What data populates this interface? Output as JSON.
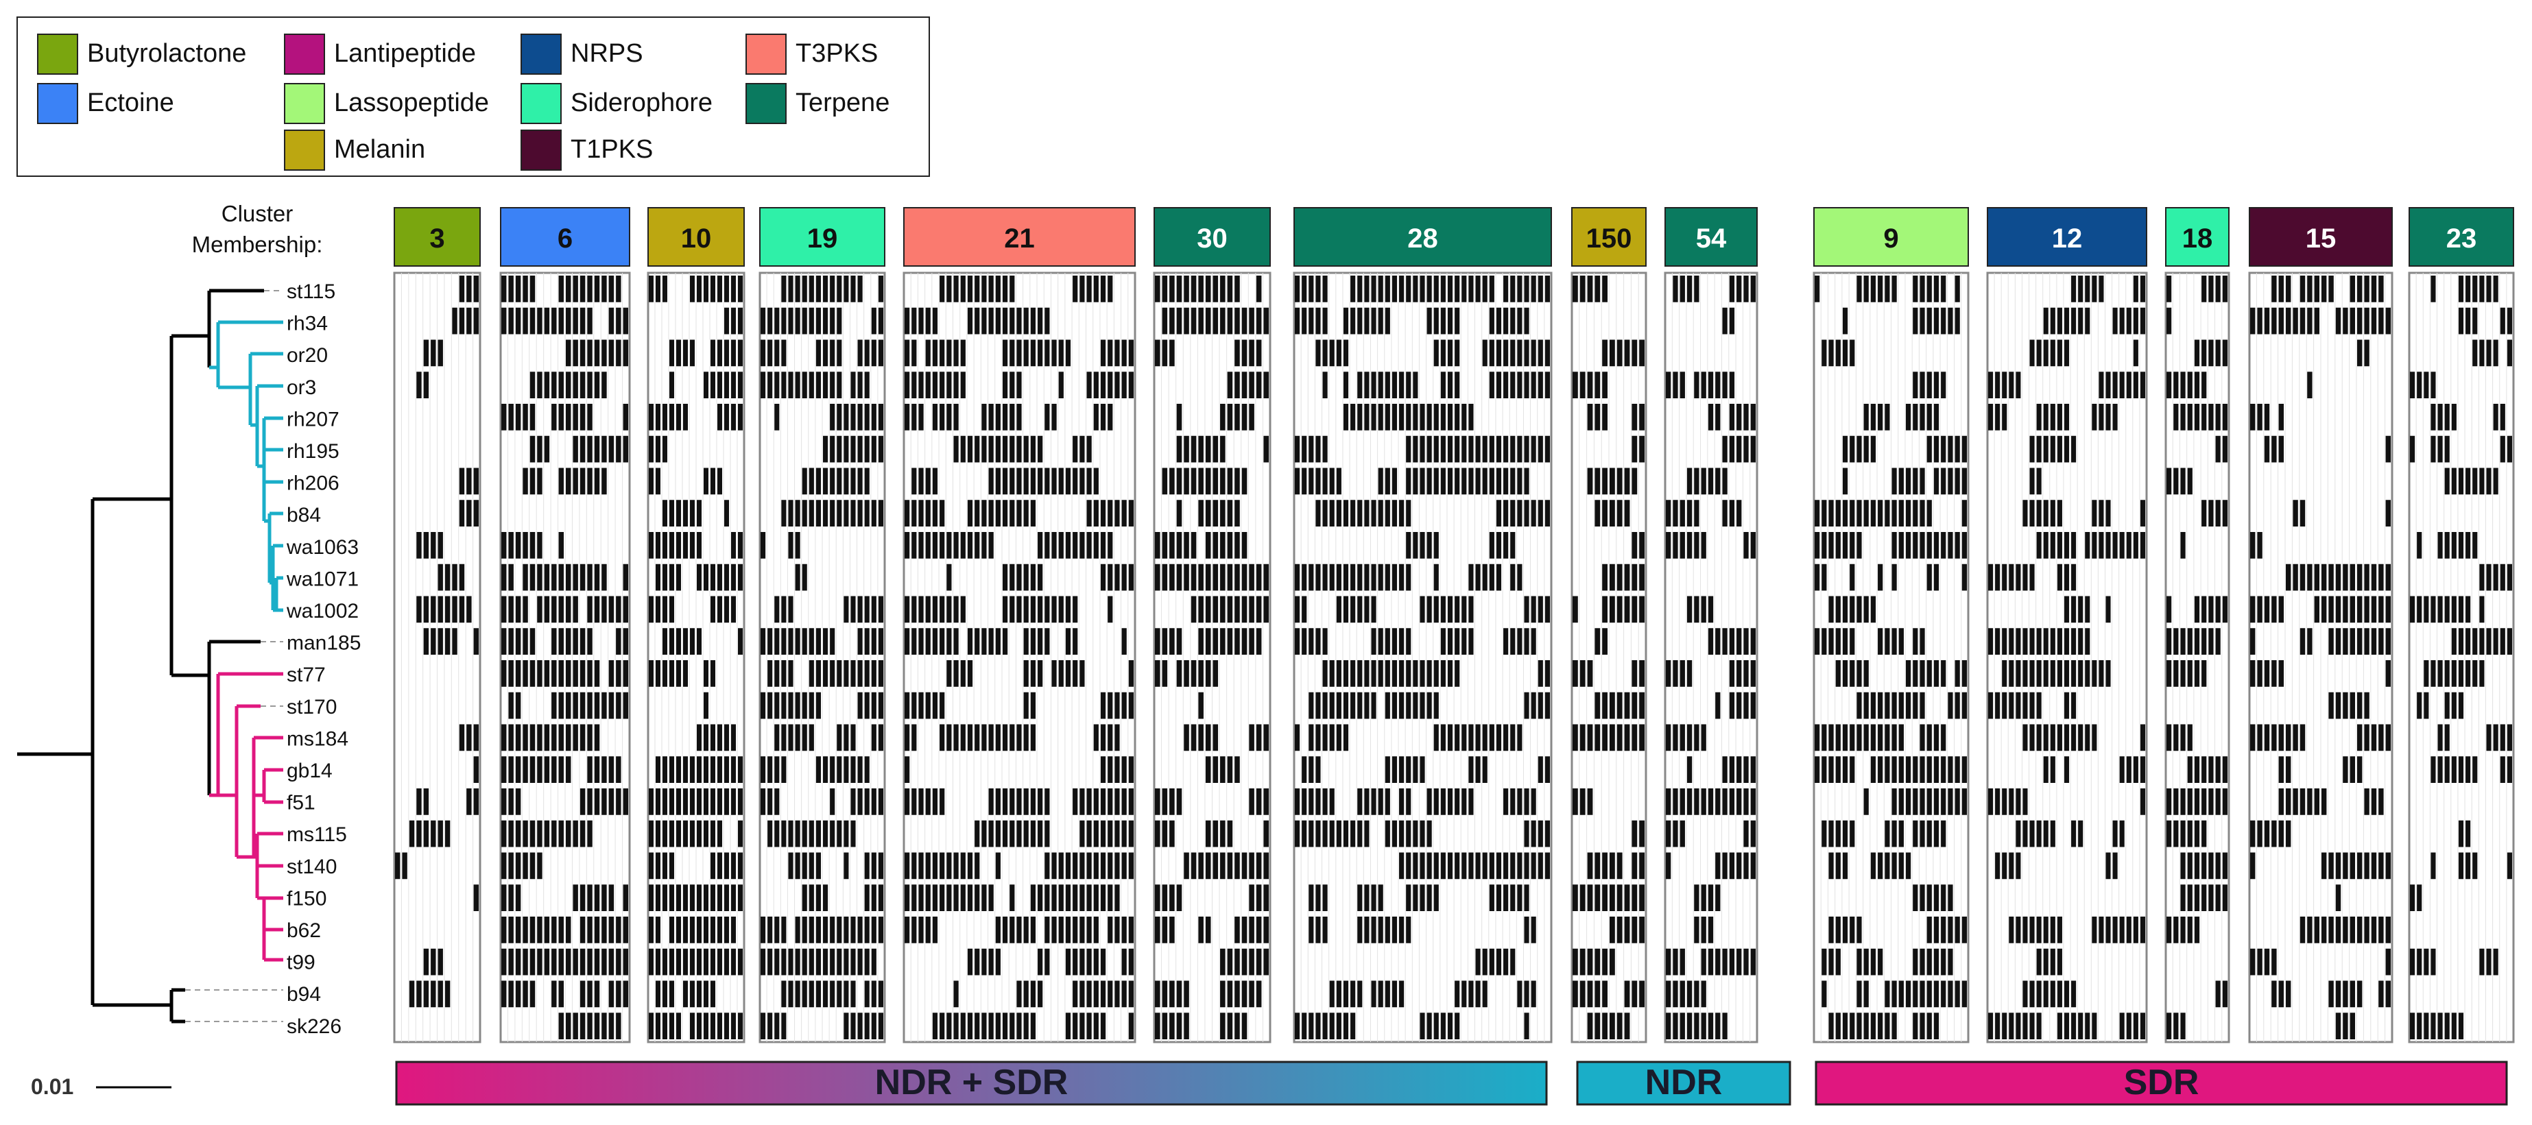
{
  "legend": {
    "items": [
      {
        "label": "Butyrolactone",
        "color": "#7aa60f",
        "col": 0,
        "row": 0
      },
      {
        "label": "Ectoine",
        "color": "#3b82f6",
        "col": 0,
        "row": 1
      },
      {
        "label": "Lantipeptide",
        "color": "#b4127e",
        "col": 1,
        "row": 0
      },
      {
        "label": "Lassopeptide",
        "color": "#a3f778",
        "col": 1,
        "row": 1
      },
      {
        "label": "Melanin",
        "color": "#bca711",
        "col": 1,
        "row": 2
      },
      {
        "label": "NRPS",
        "color": "#0d4c8f",
        "col": 2,
        "row": 0
      },
      {
        "label": "Siderophore",
        "color": "#2ff0a8",
        "col": 2,
        "row": 1
      },
      {
        "label": "T1PKS",
        "color": "#4d0a2f",
        "col": 2,
        "row": 2
      },
      {
        "label": "T3PKS",
        "color": "#fa7a6f",
        "col": 3,
        "row": 0
      },
      {
        "label": "Terpene",
        "color": "#0a7a5f",
        "col": 3,
        "row": 1
      }
    ]
  },
  "membership_label_line1": "Cluster",
  "membership_label_line2": "Membership:",
  "scale_label": "0.01",
  "strains": [
    "st115",
    "rh34",
    "or20",
    "or3",
    "rh207",
    "rh195",
    "rh206",
    "b84",
    "wa1063",
    "wa1071",
    "wa1002",
    "man185",
    "st77",
    "st170",
    "ms184",
    "gb14",
    "f51",
    "ms115",
    "st140",
    "f150",
    "b62",
    "t99",
    "b94",
    "sk226"
  ],
  "clusters": [
    {
      "label": "3",
      "type": "Butyrolactone",
      "color": "#7aa60f",
      "text_color": "#111111"
    },
    {
      "label": "6",
      "type": "Ectoine",
      "color": "#3b82f6",
      "text_color": "#111111"
    },
    {
      "label": "10",
      "type": "Melanin",
      "color": "#bca711",
      "text_color": "#111111"
    },
    {
      "label": "19",
      "type": "Siderophore",
      "color": "#2ff0a8",
      "text_color": "#111111"
    },
    {
      "label": "21",
      "type": "T3PKS",
      "color": "#fa7a6f",
      "text_color": "#111111"
    },
    {
      "label": "30",
      "type": "Terpene",
      "color": "#0a7a5f",
      "text_color": "#ffffff"
    },
    {
      "label": "28",
      "type": "Terpene",
      "color": "#0a7a5f",
      "text_color": "#ffffff"
    },
    {
      "label": "150",
      "type": "Melanin",
      "color": "#bca711",
      "text_color": "#111111"
    },
    {
      "label": "54",
      "type": "Terpene",
      "color": "#0a7a5f",
      "text_color": "#ffffff"
    },
    {
      "label": "9",
      "type": "Lassopeptide",
      "color": "#a3f778",
      "text_color": "#111111"
    },
    {
      "label": "12",
      "type": "NRPS",
      "color": "#0d4c8f",
      "text_color": "#ffffff"
    },
    {
      "label": "18",
      "type": "Siderophore",
      "color": "#2ff0a8",
      "text_color": "#111111"
    },
    {
      "label": "15",
      "type": "T1PKS",
      "color": "#4d0a2f",
      "text_color": "#ffffff"
    },
    {
      "label": "23",
      "type": "Terpene",
      "color": "#0a7a5f",
      "text_color": "#ffffff"
    }
  ],
  "regions": [
    {
      "label": "NDR + SDR",
      "gradient": [
        "#e0177f",
        "#1aaec8"
      ]
    },
    {
      "label": "NDR",
      "gradient": [
        "#1aaec8",
        "#1aaec8"
      ]
    },
    {
      "label": "SDR",
      "gradient": [
        "#e0177f",
        "#e0177f"
      ]
    }
  ],
  "clade_colors": {
    "ndr": "#1aaec8",
    "sdr": "#e0177f",
    "other": "#000000"
  }
}
